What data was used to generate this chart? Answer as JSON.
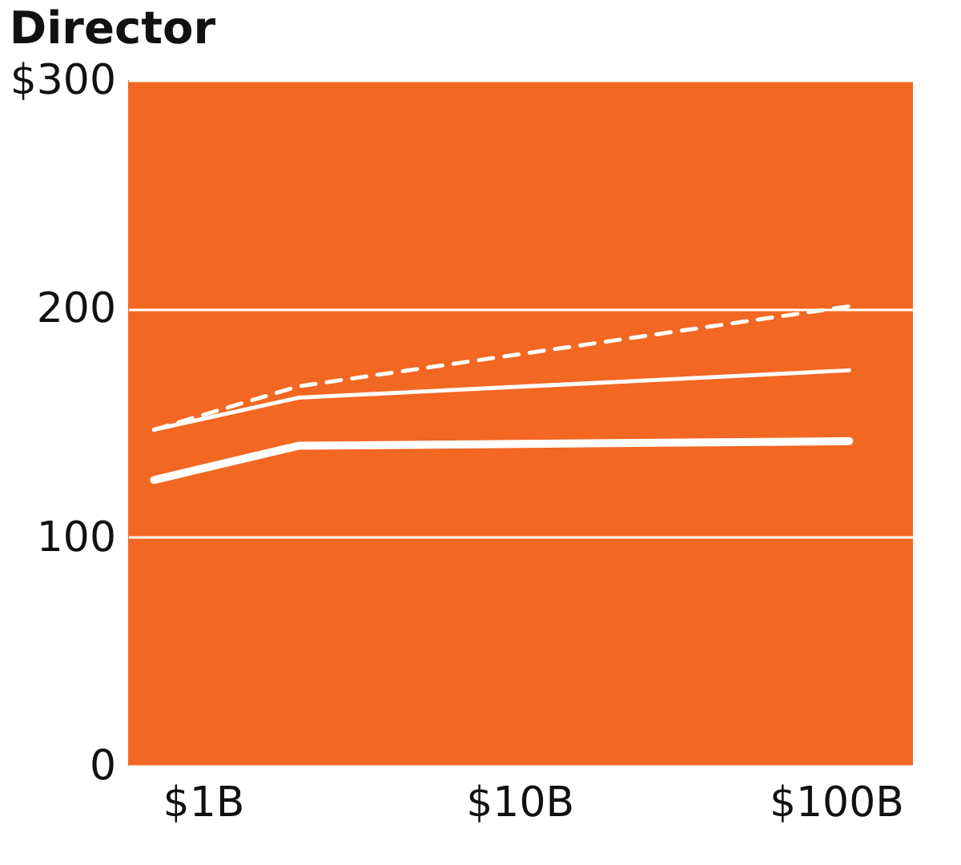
{
  "chart_data": {
    "type": "line",
    "title": "Director",
    "x": [
      0.7,
      2,
      110
    ],
    "series": [
      {
        "color": "#ffffff",
        "values": [
          125,
          140,
          142
        ]
      },
      {
        "color": "#ffffff",
        "values": [
          147,
          161,
          173
        ]
      },
      {
        "color": "#ffffff",
        "values": [
          147,
          166,
          201
        ],
        "line_style": "dashed"
      }
    ],
    "log": "x",
    "xlim": [
      0.58,
      175
    ],
    "xticks": [
      {
        "value": 1,
        "label": "$1B"
      },
      {
        "value": 10,
        "label": "$10B"
      },
      {
        "value": 100,
        "label": "$100B"
      }
    ],
    "ylim": [
      0,
      300
    ],
    "yticks": [
      0,
      100,
      200,
      {
        "value": 300,
        "label": "$300"
      }
    ],
    "grid": "y"
  }
}
